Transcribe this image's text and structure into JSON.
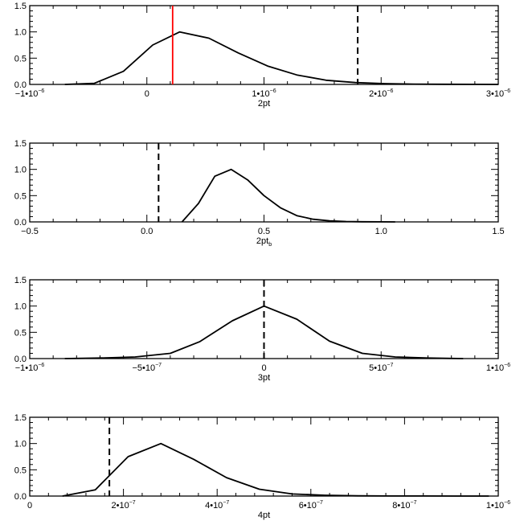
{
  "chart_data": [
    {
      "type": "line",
      "xlabel": "2pt",
      "xlim": [
        -1e-06,
        3e-06
      ],
      "ylim": [
        0,
        1.5
      ],
      "xticks": [
        {
          "v": -1e-06,
          "m": "−1•10",
          "e": "−6"
        },
        {
          "v": 0,
          "m": "0",
          "e": ""
        },
        {
          "v": 1e-06,
          "m": "1•10",
          "e": "−6"
        },
        {
          "v": 2e-06,
          "m": "2•10",
          "e": "−6"
        },
        {
          "v": 3e-06,
          "m": "3•10",
          "e": "−6"
        }
      ],
      "yticks": [
        {
          "v": 0,
          "l": "0.0"
        },
        {
          "v": 0.5,
          "l": "0.5"
        },
        {
          "v": 1.0,
          "l": "1.0"
        },
        {
          "v": 1.5,
          "l": "1.5"
        }
      ],
      "series": [
        {
          "x": [
            -7e-07,
            -4.5e-07,
            -2e-07,
            5e-08,
            2.8e-07,
            5.3e-07,
            7.8e-07,
            1.03e-06,
            1.28e-06,
            1.53e-06,
            1.78e-06,
            2.03e-06,
            2.28e-06,
            2.53e-06,
            2.78e-06,
            3e-06
          ],
          "y": [
            0.0,
            0.02,
            0.25,
            0.75,
            1.0,
            0.88,
            0.6,
            0.35,
            0.18,
            0.08,
            0.035,
            0.015,
            0.006,
            0.003,
            0.001,
            0.0
          ],
          "color": "#000000"
        }
      ],
      "vlines": [
        {
          "x": 2.2e-07,
          "color": "#ff0000",
          "style": "solid"
        },
        {
          "x": 1.8e-06,
          "color": "#000000",
          "style": "dashed"
        }
      ]
    },
    {
      "type": "line",
      "xlabel": "2pt",
      "xlabel_sub": "b",
      "xlim": [
        -0.5,
        1.5
      ],
      "ylim": [
        0,
        1.5
      ],
      "xticks": [
        {
          "v": -0.5,
          "m": "−0.5",
          "e": ""
        },
        {
          "v": 0.0,
          "m": "0.0",
          "e": ""
        },
        {
          "v": 0.5,
          "m": "0.5",
          "e": ""
        },
        {
          "v": 1.0,
          "m": "1.0",
          "e": ""
        },
        {
          "v": 1.5,
          "m": "1.5",
          "e": ""
        }
      ],
      "yticks": [
        {
          "v": 0,
          "l": "0.0"
        },
        {
          "v": 0.5,
          "l": "0.5"
        },
        {
          "v": 1.0,
          "l": "1.0"
        },
        {
          "v": 1.5,
          "l": "1.5"
        }
      ],
      "series": [
        {
          "x": [
            0.15,
            0.22,
            0.29,
            0.36,
            0.43,
            0.5,
            0.57,
            0.64,
            0.71,
            0.78,
            0.85,
            0.92,
            0.99,
            1.06
          ],
          "y": [
            0.0,
            0.35,
            0.87,
            1.0,
            0.8,
            0.5,
            0.27,
            0.12,
            0.05,
            0.02,
            0.008,
            0.003,
            0.001,
            0.0
          ],
          "color": "#000000"
        }
      ],
      "vlines": [
        {
          "x": 0.05,
          "color": "#000000",
          "style": "dashed"
        }
      ]
    },
    {
      "type": "line",
      "xlabel": "3pt",
      "xlim": [
        -1e-06,
        1e-06
      ],
      "ylim": [
        0,
        1.5
      ],
      "xticks": [
        {
          "v": -1e-06,
          "m": "−1•10",
          "e": "−6"
        },
        {
          "v": -5e-07,
          "m": "−5•10",
          "e": "−7"
        },
        {
          "v": 0,
          "m": "0",
          "e": ""
        },
        {
          "v": 5e-07,
          "m": "5•10",
          "e": "−7"
        },
        {
          "v": 1e-06,
          "m": "1•10",
          "e": "−6"
        }
      ],
      "yticks": [
        {
          "v": 0,
          "l": "0.0"
        },
        {
          "v": 0.5,
          "l": "0.5"
        },
        {
          "v": 1.0,
          "l": "1.0"
        },
        {
          "v": 1.5,
          "l": "1.5"
        }
      ],
      "series": [
        {
          "x": [
            -8.5e-07,
            -7e-07,
            -5.5e-07,
            -4e-07,
            -2.75e-07,
            -1.35e-07,
            0,
            1.4e-07,
            2.8e-07,
            4.2e-07,
            5.6e-07,
            7e-07,
            8.5e-07
          ],
          "y": [
            0.0,
            0.01,
            0.03,
            0.1,
            0.32,
            0.72,
            1.0,
            0.75,
            0.33,
            0.1,
            0.03,
            0.01,
            0.0
          ],
          "color": "#000000"
        }
      ],
      "vlines": [
        {
          "x": 0,
          "color": "#000000",
          "style": "dashed"
        }
      ]
    },
    {
      "type": "line",
      "xlabel": "4pt",
      "xlim": [
        0,
        1e-06
      ],
      "ylim": [
        0,
        1.5
      ],
      "xticks": [
        {
          "v": 0,
          "m": "0",
          "e": ""
        },
        {
          "v": 2e-07,
          "m": "2•10",
          "e": "−7"
        },
        {
          "v": 4e-07,
          "m": "4•10",
          "e": "−7"
        },
        {
          "v": 6e-07,
          "m": "6•10",
          "e": "−7"
        },
        {
          "v": 8e-07,
          "m": "8•10",
          "e": "−7"
        },
        {
          "v": 1e-06,
          "m": "1•10",
          "e": "−6"
        }
      ],
      "yticks": [
        {
          "v": 0,
          "l": "0.0"
        },
        {
          "v": 0.5,
          "l": "0.5"
        },
        {
          "v": 1.0,
          "l": "1.0"
        },
        {
          "v": 1.5,
          "l": "1.5"
        }
      ],
      "series": [
        {
          "x": [
            7e-08,
            1.4e-07,
            2.1e-07,
            2.8e-07,
            3.5e-07,
            4.2e-07,
            4.9e-07,
            5.6e-07,
            6.3e-07,
            7e-07,
            7.7e-07,
            8.4e-07,
            9.1e-07,
            9.8e-07
          ],
          "y": [
            0.0,
            0.12,
            0.75,
            1.0,
            0.7,
            0.35,
            0.13,
            0.04,
            0.015,
            0.005,
            0.002,
            0.001,
            0.0,
            0.0
          ],
          "color": "#000000"
        }
      ],
      "vlines": [
        {
          "x": 1.7e-07,
          "color": "#000000",
          "style": "dashed"
        }
      ]
    }
  ]
}
